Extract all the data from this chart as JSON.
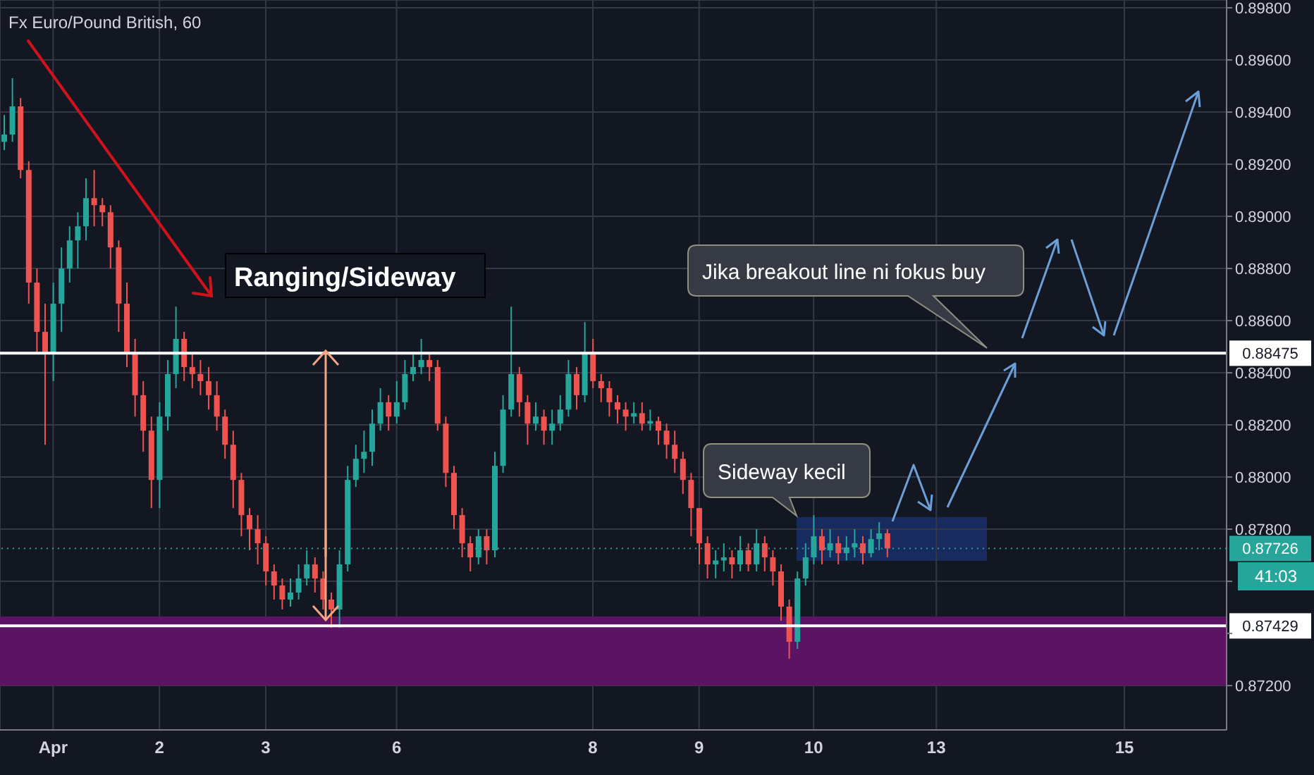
{
  "chart_data": {
    "type": "candlestick",
    "title": "Fx Euro/Pound British, 60",
    "categories": [
      null,
      null,
      null,
      null,
      null,
      null,
      "Apr",
      null,
      null,
      null,
      null,
      null,
      null,
      null,
      null,
      null,
      null,
      null,
      null,
      "2",
      null,
      null,
      null,
      null,
      null,
      null,
      null,
      null,
      null,
      null,
      null,
      null,
      "3",
      null,
      null,
      null,
      null,
      null,
      null,
      null,
      null,
      null,
      null,
      null,
      null,
      null,
      null,
      null,
      "6",
      null,
      null,
      null,
      null,
      null,
      null,
      null,
      null,
      null,
      null,
      null,
      null,
      null,
      null,
      null,
      null,
      null,
      null,
      null,
      null,
      null,
      null,
      null,
      "8",
      null,
      null,
      null,
      null,
      null,
      null,
      null,
      null,
      null,
      null,
      null,
      null,
      "9",
      null,
      null,
      null,
      null,
      null,
      null,
      null,
      null,
      null,
      null,
      null,
      null,
      null,
      "10",
      null,
      null,
      null,
      null,
      null,
      null,
      null,
      null,
      null,
      null,
      null,
      null,
      null,
      null,
      "13",
      null,
      null,
      null,
      null,
      null,
      null,
      null,
      null,
      null,
      null,
      null,
      null,
      null,
      null,
      null,
      null,
      null,
      null,
      null,
      null,
      null,
      null,
      "15",
      null,
      null,
      null,
      null,
      null,
      null,
      null,
      null,
      null,
      null,
      null,
      null
    ],
    "ohlc": [
      [
        0.89286,
        0.89389,
        0.89254,
        0.89314
      ],
      [
        0.89314,
        0.8953,
        0.89286,
        0.89422
      ],
      [
        0.89422,
        0.89454,
        0.89146,
        0.89178
      ],
      [
        0.89178,
        0.89211,
        0.88665,
        0.88746
      ],
      [
        0.88746,
        0.888,
        0.88476,
        0.88557
      ],
      [
        0.88557,
        0.88665,
        0.88124,
        0.88476
      ],
      [
        0.88476,
        0.88746,
        0.88368,
        0.88665
      ],
      [
        0.88665,
        0.88881,
        0.88557,
        0.888
      ],
      [
        0.888,
        0.88962,
        0.88746,
        0.88908
      ],
      [
        0.88908,
        0.89016,
        0.888,
        0.88962
      ],
      [
        0.88962,
        0.89146,
        0.88908,
        0.8907
      ],
      [
        0.8907,
        0.89178,
        0.88962,
        0.89043
      ],
      [
        0.89043,
        0.8907,
        0.88962,
        0.89016
      ],
      [
        0.89016,
        0.89043,
        0.888,
        0.88881
      ],
      [
        0.88881,
        0.88908,
        0.88557,
        0.88665
      ],
      [
        0.88665,
        0.88746,
        0.88422,
        0.88476
      ],
      [
        0.88476,
        0.8853,
        0.88232,
        0.88314
      ],
      [
        0.88314,
        0.88368,
        0.88097,
        0.88178
      ],
      [
        0.88178,
        0.88232,
        0.87881,
        0.87989
      ],
      [
        0.87989,
        0.88287,
        0.87881,
        0.88232
      ],
      [
        0.88232,
        0.88449,
        0.88178,
        0.88395
      ],
      [
        0.88395,
        0.88654,
        0.88341,
        0.8853
      ],
      [
        0.8853,
        0.88557,
        0.88368,
        0.88422
      ],
      [
        0.88422,
        0.88476,
        0.88341,
        0.88395
      ],
      [
        0.88395,
        0.88449,
        0.88314,
        0.88368
      ],
      [
        0.88368,
        0.88422,
        0.88259,
        0.88314
      ],
      [
        0.88314,
        0.88368,
        0.88178,
        0.88232
      ],
      [
        0.88232,
        0.88259,
        0.8807,
        0.88124
      ],
      [
        0.88124,
        0.88178,
        0.87881,
        0.87989
      ],
      [
        0.87989,
        0.88016,
        0.87773,
        0.87854
      ],
      [
        0.87854,
        0.87881,
        0.87719,
        0.878
      ],
      [
        0.878,
        0.87854,
        0.87665,
        0.87746
      ],
      [
        0.87746,
        0.87773,
        0.87584,
        0.87638
      ],
      [
        0.87638,
        0.87665,
        0.8753,
        0.87584
      ],
      [
        0.87584,
        0.87611,
        0.87492,
        0.8753
      ],
      [
        0.8753,
        0.87611,
        0.87503,
        0.87557
      ],
      [
        0.87557,
        0.87665,
        0.8753,
        0.87611
      ],
      [
        0.87611,
        0.87719,
        0.87584,
        0.87665
      ],
      [
        0.87665,
        0.87692,
        0.87557,
        0.87611
      ],
      [
        0.87611,
        0.87638,
        0.87492,
        0.8753
      ],
      [
        0.8753,
        0.87557,
        0.87422,
        0.87492
      ],
      [
        0.87492,
        0.87719,
        0.87422,
        0.87665
      ],
      [
        0.87665,
        0.88043,
        0.87638,
        0.87989
      ],
      [
        0.87989,
        0.88124,
        0.87962,
        0.8807
      ],
      [
        0.8807,
        0.88178,
        0.88016,
        0.88097
      ],
      [
        0.88097,
        0.88259,
        0.88043,
        0.88205
      ],
      [
        0.88205,
        0.88341,
        0.88178,
        0.88287
      ],
      [
        0.88287,
        0.88314,
        0.88178,
        0.88232
      ],
      [
        0.88232,
        0.88368,
        0.88205,
        0.88287
      ],
      [
        0.88287,
        0.88449,
        0.88259,
        0.88395
      ],
      [
        0.88395,
        0.88476,
        0.88368,
        0.88422
      ],
      [
        0.88422,
        0.8853,
        0.88395,
        0.88449
      ],
      [
        0.88449,
        0.88476,
        0.88368,
        0.88422
      ],
      [
        0.88422,
        0.88449,
        0.88178,
        0.88205
      ],
      [
        0.88205,
        0.88232,
        0.87962,
        0.88016
      ],
      [
        0.88016,
        0.88043,
        0.878,
        0.87854
      ],
      [
        0.87854,
        0.87881,
        0.87692,
        0.87746
      ],
      [
        0.87746,
        0.87773,
        0.87638,
        0.87692
      ],
      [
        0.87692,
        0.878,
        0.87665,
        0.87773
      ],
      [
        0.87773,
        0.878,
        0.87665,
        0.87719
      ],
      [
        0.87719,
        0.88097,
        0.87692,
        0.88043
      ],
      [
        0.88043,
        0.88314,
        0.88016,
        0.88259
      ],
      [
        0.88259,
        0.88654,
        0.88232,
        0.88395
      ],
      [
        0.88395,
        0.88422,
        0.88232,
        0.88287
      ],
      [
        0.88287,
        0.88314,
        0.88124,
        0.88205
      ],
      [
        0.88205,
        0.88287,
        0.88178,
        0.88232
      ],
      [
        0.88232,
        0.88259,
        0.88124,
        0.88178
      ],
      [
        0.88178,
        0.88259,
        0.88124,
        0.88205
      ],
      [
        0.88205,
        0.88314,
        0.88178,
        0.88259
      ],
      [
        0.88259,
        0.88449,
        0.88232,
        0.88395
      ],
      [
        0.88395,
        0.88422,
        0.88259,
        0.88314
      ],
      [
        0.88314,
        0.88595,
        0.88287,
        0.88476
      ],
      [
        0.88476,
        0.8853,
        0.88341,
        0.88368
      ],
      [
        0.88368,
        0.88395,
        0.88287,
        0.88341
      ],
      [
        0.88341,
        0.88368,
        0.88232,
        0.88287
      ],
      [
        0.88287,
        0.88314,
        0.88205,
        0.88259
      ],
      [
        0.88259,
        0.88287,
        0.88178,
        0.88232
      ],
      [
        0.88232,
        0.88287,
        0.88205,
        0.88245
      ],
      [
        0.88245,
        0.88287,
        0.88178,
        0.88205
      ],
      [
        0.88205,
        0.88259,
        0.88178,
        0.88215
      ],
      [
        0.88215,
        0.88232,
        0.88124,
        0.88178
      ],
      [
        0.88178,
        0.88205,
        0.8807,
        0.88124
      ],
      [
        0.88124,
        0.88178,
        0.88016,
        0.8807
      ],
      [
        0.8807,
        0.88097,
        0.87935,
        0.87989
      ],
      [
        0.87989,
        0.88016,
        0.87773,
        0.87881
      ],
      [
        0.87881,
        0.87881,
        0.87665,
        0.87746
      ],
      [
        0.87746,
        0.87773,
        0.87611,
        0.87665
      ],
      [
        0.87665,
        0.87719,
        0.87611,
        0.8768
      ],
      [
        0.8768,
        0.87746,
        0.87638,
        0.87692
      ],
      [
        0.87692,
        0.87719,
        0.87611,
        0.87665
      ],
      [
        0.87665,
        0.87773,
        0.87638,
        0.87719
      ],
      [
        0.87719,
        0.87746,
        0.87638,
        0.87665
      ],
      [
        0.87665,
        0.878,
        0.87638,
        0.87746
      ],
      [
        0.87746,
        0.87773,
        0.87638,
        0.87692
      ],
      [
        0.87692,
        0.87719,
        0.87584,
        0.87638
      ],
      [
        0.87638,
        0.87665,
        0.87449,
        0.87503
      ],
      [
        0.87503,
        0.8753,
        0.87303,
        0.87368
      ],
      [
        0.87368,
        0.87638,
        0.87341,
        0.87611
      ],
      [
        0.87611,
        0.87746,
        0.87584,
        0.87692
      ],
      [
        0.87692,
        0.87854,
        0.87665,
        0.87773
      ],
      [
        0.87773,
        0.878,
        0.87665,
        0.87719
      ],
      [
        0.87719,
        0.878,
        0.87692,
        0.87746
      ],
      [
        0.87746,
        0.87773,
        0.87665,
        0.87708
      ],
      [
        0.87708,
        0.87773,
        0.8768,
        0.8773
      ],
      [
        0.8773,
        0.878,
        0.87692,
        0.87746
      ],
      [
        0.87746,
        0.87773,
        0.87665,
        0.87708
      ],
      [
        0.87708,
        0.878,
        0.87692,
        0.87762
      ],
      [
        0.87762,
        0.87827,
        0.87719,
        0.87784
      ],
      [
        0.87784,
        0.878,
        0.87692,
        0.87726
      ],
      null,
      null,
      null,
      null,
      null,
      null,
      null,
      null,
      null,
      null,
      null,
      null,
      null,
      null,
      null,
      null,
      null,
      null,
      null,
      null,
      null,
      null,
      null,
      null,
      null,
      null,
      null,
      null,
      null,
      null,
      null,
      null,
      null,
      null,
      null,
      null,
      null,
      null,
      null,
      null,
      null
    ],
    "ylim": [
      0.8703,
      0.8983
    ],
    "yticks": [
      {
        "value": 0.872,
        "label": "0.87200"
      },
      {
        "value": 0.874,
        "label": null
      },
      {
        "value": 0.876,
        "label": null
      },
      {
        "value": 0.878,
        "label": "0.87800"
      },
      {
        "value": 0.88,
        "label": "0.88000"
      },
      {
        "value": 0.882,
        "label": "0.88200"
      },
      {
        "value": 0.884,
        "label": "0.88400"
      },
      {
        "value": 0.886,
        "label": "0.88600"
      },
      {
        "value": 0.888,
        "label": "0.88800"
      },
      {
        "value": 0.89,
        "label": "0.89000"
      },
      {
        "value": 0.892,
        "label": "0.89200"
      },
      {
        "value": 0.894,
        "label": "0.89400"
      },
      {
        "value": 0.896,
        "label": "0.89600"
      },
      {
        "value": 0.898,
        "label": "0.89800"
      }
    ],
    "grid": true,
    "ref_lines": [
      {
        "axis": "y",
        "value": 0.88475,
        "label": "0.88475",
        "color": "#ffffff",
        "line_style": "solid"
      },
      {
        "axis": "y",
        "value": 0.87726,
        "label": "0.87726",
        "color": "#26a69a",
        "line_style": "dotted"
      },
      {
        "axis": "y",
        "value": 0.87429,
        "label": "0.87429",
        "color": "#ffffff",
        "line_style": "solid"
      }
    ],
    "bands": [
      {
        "axis": "y",
        "from": 0.872,
        "to": 0.87465,
        "color": "#5a1463"
      }
    ],
    "annotations": [
      "Ranging/Sideway",
      "Jika breakout line ni fokus buy",
      "Sideway kecil",
      "41:03"
    ]
  }
}
